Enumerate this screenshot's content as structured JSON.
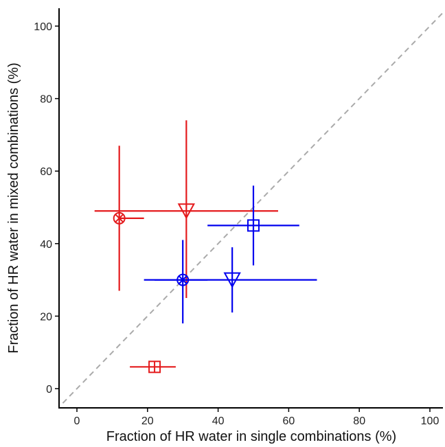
{
  "chart_data": {
    "type": "scatter",
    "title": "",
    "xlabel": "Fraction of HR water in single combinations (%)",
    "ylabel": "Fraction of HR water in mixed combinations (%)",
    "xlim": [
      -4,
      104
    ],
    "ylim": [
      -5,
      105
    ],
    "xticks": [
      "0",
      "20",
      "40",
      "60",
      "80",
      "100"
    ],
    "yticks": [
      "0",
      "20",
      "40",
      "60",
      "80",
      "100"
    ],
    "grid": false,
    "legend": "none",
    "reference_line": {
      "type": "y=x",
      "style": "dashed",
      "color": "#aaaaaa"
    },
    "series": [
      {
        "color": "#e41a1c",
        "points": [
          {
            "marker": "circle-x",
            "x": 12,
            "y": 47,
            "x_err": [
              12,
              19
            ],
            "y_err": [
              27,
              67
            ]
          },
          {
            "marker": "triangle-down",
            "x": 31,
            "y": 49,
            "x_err": [
              5,
              57
            ],
            "y_err": [
              25,
              74
            ]
          },
          {
            "marker": "square-plus",
            "x": 22,
            "y": 6,
            "x_err": [
              15,
              28
            ],
            "y_err": [
              6,
              6
            ]
          }
        ]
      },
      {
        "color": "#0000ee",
        "points": [
          {
            "marker": "circle-x",
            "x": 30,
            "y": 30,
            "x_err": [
              22,
              37
            ],
            "y_err": [
              18,
              41
            ]
          },
          {
            "marker": "triangle-down",
            "x": 44,
            "y": 30,
            "x_err": [
              19,
              68
            ],
            "y_err": [
              21,
              39
            ]
          },
          {
            "marker": "square-plus",
            "x": 50,
            "y": 45,
            "x_err": [
              37,
              63
            ],
            "y_err": [
              34,
              56
            ]
          }
        ]
      }
    ]
  }
}
